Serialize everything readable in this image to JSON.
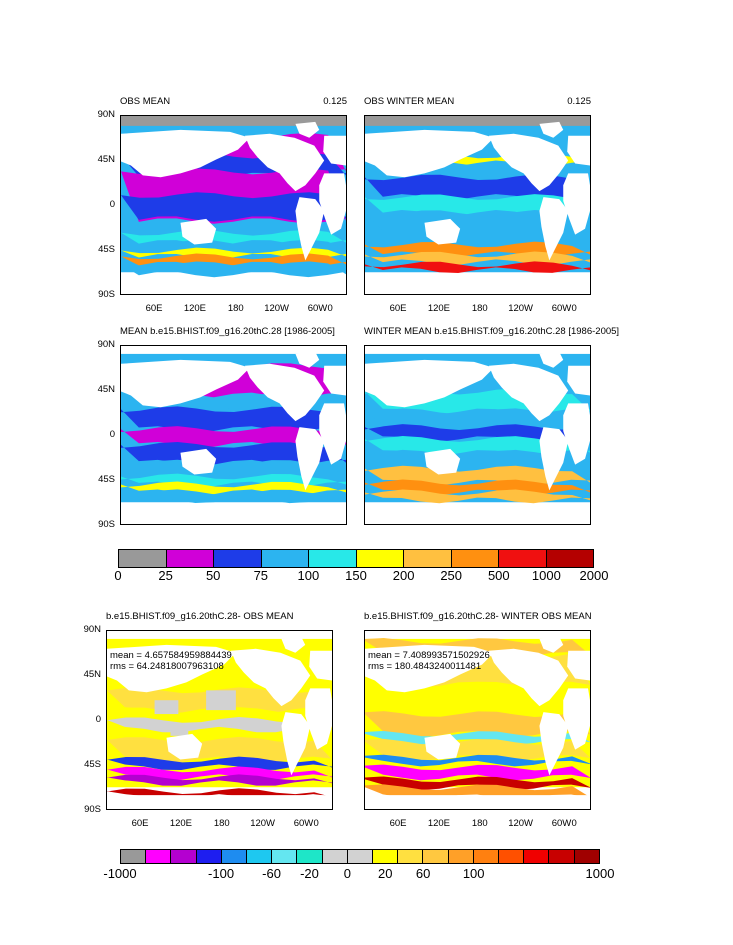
{
  "panels": [
    {
      "id": "obs-mean",
      "title": "OBS MEAN",
      "right": "0.125",
      "y_ticks": [
        "90N",
        "45N",
        "0",
        "45S",
        "90S"
      ],
      "x_ticks": [
        "60E",
        "120E",
        "180",
        "120W",
        "60W",
        "0"
      ]
    },
    {
      "id": "obs-winter",
      "title": "OBS WINTER MEAN",
      "right": "0.125",
      "y_ticks": [],
      "x_ticks": [
        "60E",
        "120E",
        "180",
        "120W",
        "60W",
        "0"
      ]
    },
    {
      "id": "model-mean",
      "title": "MEAN b.e15.BHIST.f09_g16.20thC.28 [1986-2005]",
      "right": "",
      "y_ticks": [
        "90N",
        "45N",
        "0",
        "45S",
        "90S"
      ],
      "x_ticks": []
    },
    {
      "id": "model-winter",
      "title": "WINTER MEAN b.e15.BHIST.f09_g16.20thC.28 [1986-2005]",
      "right": "",
      "y_ticks": [],
      "x_ticks": []
    },
    {
      "id": "diff-mean",
      "title": "b.e15.BHIST.f09_g16.20thC.28- OBS MEAN",
      "right": "",
      "stat1": "mean = 4.657584959884439",
      "stat2": "rms = 64.24818007963108",
      "y_ticks": [
        "90N",
        "45N",
        "0",
        "45S",
        "90S"
      ],
      "x_ticks": [
        "60E",
        "120E",
        "180",
        "120W",
        "60W",
        "0"
      ]
    },
    {
      "id": "diff-winter",
      "title": "b.e15.BHIST.f09_g16.20thC.28- WINTER OBS MEAN",
      "right": "",
      "stat1": "mean = 7.408993571502926",
      "stat2": "rms = 180.4843240011481",
      "y_ticks": [],
      "x_ticks": [
        "60E",
        "120E",
        "180",
        "120W",
        "60W",
        "0"
      ]
    }
  ],
  "colorbar_top": {
    "colors": [
      "#999999",
      "#d000d8",
      "#1e3ce8",
      "#2cb4f0",
      "#28e8e8",
      "#ffff00",
      "#ffc040",
      "#ff9010",
      "#f01010",
      "#b40000"
    ],
    "labels": [
      "0",
      "25",
      "50",
      "75",
      "100",
      "150",
      "200",
      "250",
      "500",
      "1000",
      "2000"
    ]
  },
  "colorbar_bottom": {
    "colors": [
      "#999999",
      "#ff00ff",
      "#b400d0",
      "#1e1ef0",
      "#1e8cf0",
      "#1ec8f0",
      "#64e6f0",
      "#1ee6c8",
      "#d2d2d2",
      "#d2d2d2",
      "#ffff00",
      "#ffe040",
      "#ffc840",
      "#ffa028",
      "#ff8010",
      "#ff5000",
      "#f00000",
      "#c80000",
      "#a00000"
    ],
    "labels": [
      "-1000",
      "-100",
      "-60",
      "-20",
      "0",
      "20",
      "60",
      "100",
      "1000"
    ]
  }
}
